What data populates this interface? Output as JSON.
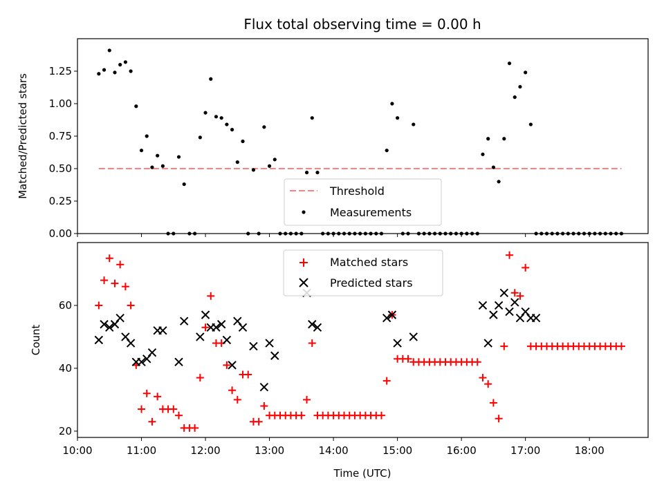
{
  "chart_data": [
    {
      "type": "scatter",
      "title": "Flux total observing time = 0.00 h",
      "xlabel": "",
      "ylabel": "Matched/Predicted stars",
      "xlim": [
        "10:00",
        "18:55"
      ],
      "ylim": [
        0,
        1.5
      ],
      "yticks": [
        "0.00",
        "0.25",
        "0.50",
        "0.75",
        "1.00",
        "1.25"
      ],
      "threshold": {
        "name": "Threshold",
        "value": 0.5,
        "x_start": "10:20",
        "x_end": "18:30",
        "color": "#ff8080",
        "style": "dashed"
      },
      "legend": {
        "placement": "lower-center",
        "entries": [
          "Threshold",
          "Measurements"
        ]
      },
      "series": [
        {
          "name": "Measurements",
          "color": "#000000",
          "marker": "dot",
          "x": [
            "10:20",
            "10:25",
            "10:30",
            "10:35",
            "10:40",
            "10:45",
            "10:50",
            "10:55",
            "11:00",
            "11:05",
            "11:10",
            "11:15",
            "11:20",
            "11:25",
            "11:30",
            "11:35",
            "11:40",
            "11:45",
            "11:50",
            "11:55",
            "12:00",
            "12:05",
            "12:10",
            "12:15",
            "12:20",
            "12:25",
            "12:30",
            "12:35",
            "12:40",
            "12:45",
            "12:50",
            "12:55",
            "13:00",
            "13:05",
            "13:10",
            "13:15",
            "13:20",
            "13:25",
            "13:30",
            "13:35",
            "13:40",
            "13:45",
            "13:50",
            "13:55",
            "14:00",
            "14:05",
            "14:10",
            "14:15",
            "14:20",
            "14:25",
            "14:30",
            "14:35",
            "14:40",
            "14:45",
            "14:50",
            "14:55",
            "15:00",
            "15:05",
            "15:10",
            "15:15",
            "15:20",
            "15:25",
            "15:30",
            "15:35",
            "15:40",
            "15:45",
            "15:50",
            "15:55",
            "16:00",
            "16:05",
            "16:10",
            "16:15",
            "16:20",
            "16:25",
            "16:30",
            "16:35",
            "16:40",
            "16:45",
            "16:50",
            "16:55",
            "17:00",
            "17:05",
            "17:10",
            "17:15",
            "17:20",
            "17:25",
            "17:30",
            "17:35",
            "17:40",
            "17:45",
            "17:50",
            "17:55",
            "18:00",
            "18:05",
            "18:10",
            "18:15",
            "18:20",
            "18:25",
            "18:30"
          ],
          "y": [
            1.23,
            1.26,
            1.41,
            1.24,
            1.3,
            1.32,
            1.25,
            0.98,
            0.64,
            0.75,
            0.51,
            0.6,
            0.52,
            0,
            0,
            0.59,
            0.38,
            0,
            0,
            0.74,
            0.93,
            1.19,
            0.9,
            0.89,
            0.84,
            0.8,
            0.55,
            0.71,
            0,
            0.49,
            0,
            0.82,
            0.52,
            0.57,
            0,
            0,
            0,
            0,
            0,
            0.47,
            0.89,
            0.47,
            0,
            0,
            0,
            0,
            0,
            0,
            0,
            0,
            0,
            0,
            0,
            0,
            0.64,
            1.0,
            0.89,
            0,
            0,
            0.84,
            0,
            0,
            0,
            0,
            0,
            0,
            0,
            0,
            0,
            0,
            0,
            0,
            0.61,
            0.73,
            0.51,
            0.4,
            0.73,
            1.31,
            1.05,
            1.13,
            1.24,
            0.84,
            0,
            0,
            0,
            0,
            0,
            0,
            0,
            0,
            0,
            0,
            0,
            0,
            0,
            0,
            0,
            0,
            0
          ]
        }
      ]
    },
    {
      "type": "scatter",
      "title": "",
      "xlabel": "Time (UTC)",
      "ylabel": "Count",
      "xlim": [
        "10:00",
        "18:55"
      ],
      "ylim": [
        18,
        80
      ],
      "yticks": [
        "20",
        "40",
        "60"
      ],
      "xticks": [
        "10:00",
        "11:00",
        "12:00",
        "13:00",
        "14:00",
        "15:00",
        "16:00",
        "17:00",
        "18:00"
      ],
      "legend": {
        "placement": "upper-center",
        "entries": [
          "Matched stars",
          "Predicted stars"
        ]
      },
      "series": [
        {
          "name": "Matched stars",
          "color": "#ff0000",
          "marker": "plus",
          "x": [
            "10:20",
            "10:25",
            "10:30",
            "10:35",
            "10:40",
            "10:45",
            "10:50",
            "10:55",
            "11:00",
            "11:05",
            "11:10",
            "11:15",
            "11:20",
            "11:25",
            "11:30",
            "11:35",
            "11:40",
            "11:45",
            "11:50",
            "11:55",
            "12:00",
            "12:05",
            "12:10",
            "12:15",
            "12:20",
            "12:25",
            "12:30",
            "12:35",
            "12:40",
            "12:45",
            "12:50",
            "12:55",
            "13:00",
            "13:05",
            "13:10",
            "13:15",
            "13:20",
            "13:25",
            "13:30",
            "13:35",
            "13:40",
            "13:45",
            "13:50",
            "13:55",
            "14:00",
            "14:05",
            "14:10",
            "14:15",
            "14:20",
            "14:25",
            "14:30",
            "14:35",
            "14:40",
            "14:45",
            "14:50",
            "14:55",
            "15:00",
            "15:05",
            "15:10",
            "15:15",
            "15:20",
            "15:25",
            "15:30",
            "15:35",
            "15:40",
            "15:45",
            "15:50",
            "15:55",
            "16:00",
            "16:05",
            "16:10",
            "16:15",
            "16:20",
            "16:25",
            "16:30",
            "16:35",
            "16:40",
            "16:45",
            "16:50",
            "16:55",
            "17:00",
            "17:05",
            "17:10",
            "17:15",
            "17:20",
            "17:25",
            "17:30",
            "17:35",
            "17:40",
            "17:45",
            "17:50",
            "17:55",
            "18:00",
            "18:05",
            "18:10",
            "18:15",
            "18:20",
            "18:25",
            "18:30"
          ],
          "y": [
            60,
            68,
            75,
            67,
            73,
            66,
            60,
            41,
            27,
            32,
            23,
            31,
            27,
            27,
            27,
            25,
            21,
            21,
            21,
            37,
            53,
            63,
            48,
            48,
            41,
            33,
            30,
            38,
            38,
            23,
            23,
            28,
            25,
            25,
            25,
            25,
            25,
            25,
            25,
            30,
            48,
            25,
            25,
            25,
            25,
            25,
            25,
            25,
            25,
            25,
            25,
            25,
            25,
            25,
            36,
            57,
            43,
            43,
            43,
            42,
            42,
            42,
            42,
            42,
            42,
            42,
            42,
            42,
            42,
            42,
            42,
            42,
            37,
            35,
            29,
            24,
            47,
            76,
            64,
            63,
            72,
            47,
            47,
            47,
            47,
            47,
            47,
            47,
            47,
            47,
            47,
            47,
            47,
            47,
            47,
            47,
            47,
            47,
            47
          ]
        },
        {
          "name": "Predicted stars",
          "color": "#000000",
          "marker": "x",
          "x": [
            "10:20",
            "10:25",
            "10:30",
            "10:35",
            "10:40",
            "10:45",
            "10:50",
            "10:55",
            "11:00",
            "11:05",
            "11:10",
            "11:15",
            "11:20",
            "11:35",
            "11:40",
            "11:55",
            "12:00",
            "12:05",
            "12:10",
            "12:15",
            "12:20",
            "12:25",
            "12:30",
            "12:35",
            "12:45",
            "12:55",
            "13:00",
            "13:05",
            "13:35",
            "13:40",
            "13:45",
            "14:50",
            "14:55",
            "15:00",
            "15:15",
            "16:20",
            "16:25",
            "16:30",
            "16:35",
            "16:40",
            "16:45",
            "16:50",
            "16:55",
            "17:00",
            "17:05",
            "17:10"
          ],
          "y": [
            49,
            54,
            53,
            54,
            56,
            50,
            48,
            42,
            42,
            43,
            45,
            52,
            52,
            42,
            55,
            50,
            57,
            53,
            53,
            54,
            49,
            41,
            55,
            53,
            47,
            34,
            48,
            44,
            64,
            54,
            53,
            56,
            57,
            48,
            50,
            60,
            48,
            57,
            60,
            64,
            58,
            61,
            56,
            58,
            56,
            56
          ]
        }
      ]
    }
  ]
}
